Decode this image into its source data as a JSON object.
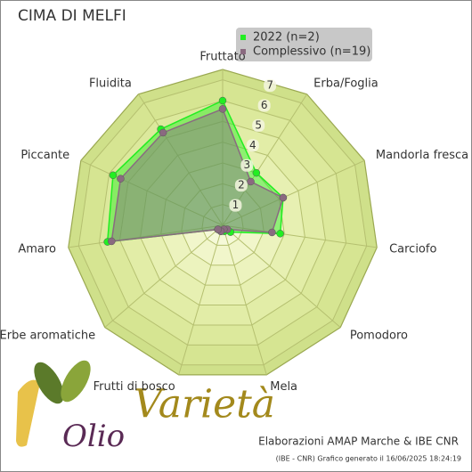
{
  "chart_data": {
    "type": "radar",
    "title": "CIMA DI MELFI",
    "categories": [
      "Fruttato",
      "Erba/Foglia",
      "Mandorla fresca",
      "Carciofo",
      "Pomodoro",
      "Mela",
      "Frutti di bosco",
      "Erbe aromatiche",
      "Amaro",
      "Piccante",
      "Fluidita"
    ],
    "series": [
      {
        "name": "2022 (n=2)",
        "color": "#22ee22",
        "values": [
          6.0,
          3.0,
          3.2,
          2.8,
          0.5,
          0.3,
          0.3,
          0.3,
          5.6,
          5.8,
          5.5
        ]
      },
      {
        "name": "Complessivo (n=19)",
        "color": "#8a6a80",
        "values": [
          5.6,
          2.5,
          3.2,
          2.4,
          0.3,
          0.2,
          0.3,
          0.3,
          5.4,
          5.4,
          5.3
        ]
      }
    ],
    "ylim": [
      0,
      7.5
    ],
    "yticks": [
      1,
      2,
      3,
      4,
      5,
      6,
      7
    ],
    "grid": true,
    "legend": "upper right",
    "credit": "Elaborazioni AMAP Marche & IBE CNR",
    "footnote": "(IBE - CNR) Grafico generato il 16/06/2025 18:24:19",
    "logo": {
      "line1": "Varietà",
      "line2": "Olio"
    }
  }
}
